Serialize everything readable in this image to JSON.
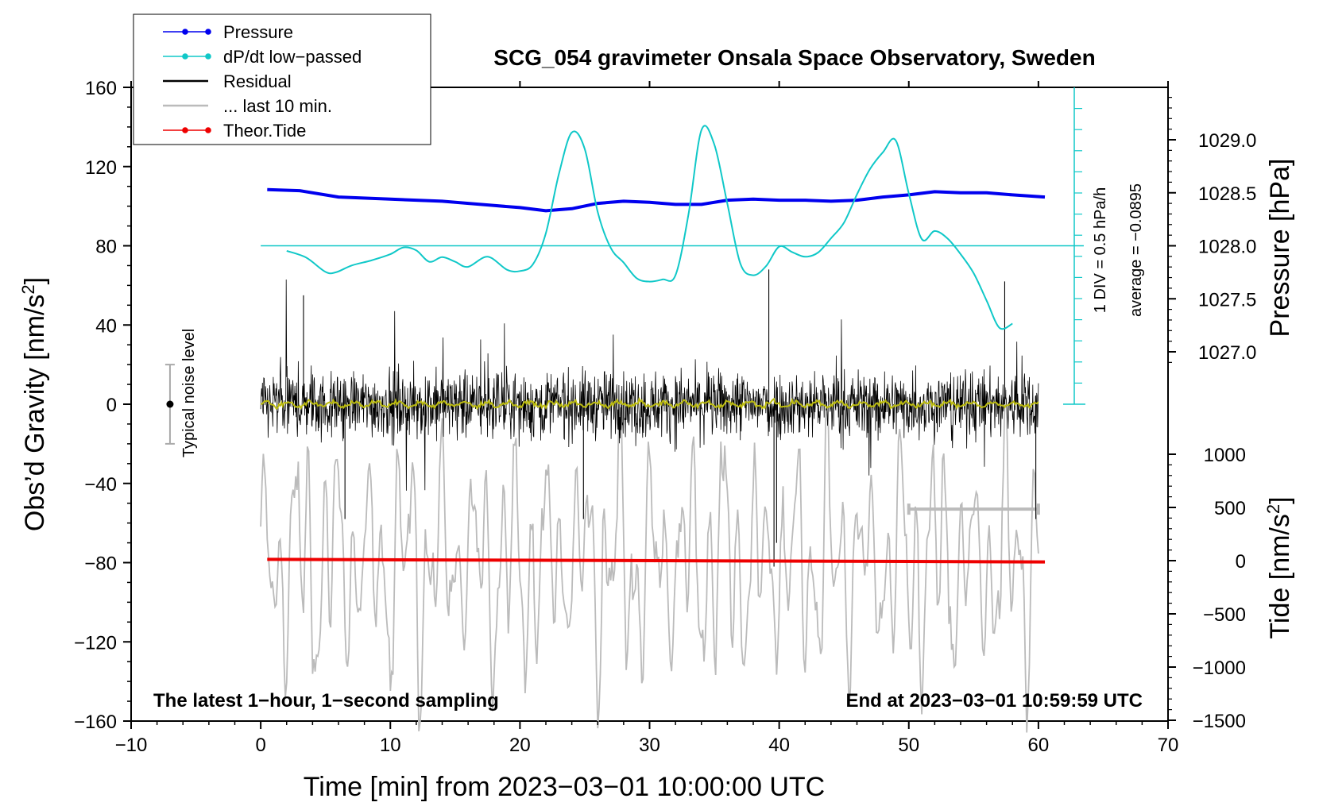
{
  "chart_data": {
    "type": "line",
    "title": "SCG_054 gravimeter Onsala Space Observatory, Sweden",
    "xlabel": "Time [min] from 2023−03−01 10:00:00 UTC",
    "ylabel_left": "Obs’d Gravity [nm/s",
    "ylabel_left_sup": "2",
    "ylabel_left_end": "]",
    "ylabel_right_top": "Pressure [hPa]",
    "ylabel_right_bottom": "Tide [nm/s",
    "ylabel_right_bottom_sup": "2",
    "ylabel_right_bottom_end": "]",
    "xlim": [
      -10,
      70
    ],
    "ylim": [
      -160,
      160
    ],
    "xticks": [
      -10,
      0,
      10,
      20,
      30,
      40,
      50,
      60,
      70
    ],
    "xtick_labels": [
      "−10",
      "0",
      "10",
      "20",
      "30",
      "40",
      "50",
      "60",
      "70"
    ],
    "yticks": [
      160,
      120,
      80,
      40,
      0,
      -40,
      -80,
      -120,
      -160
    ],
    "ytick_labels": [
      "160",
      "120",
      "80",
      "40",
      "0",
      "−40",
      "−80",
      "−120",
      "−160"
    ],
    "pressure_axis": {
      "ticks": [
        1029.0,
        1028.5,
        1028.0,
        1027.5,
        1027.0
      ],
      "labels": [
        "1029.0",
        "1028.5",
        "1028.0",
        "1027.5",
        "1027.0"
      ],
      "range_hpa": [
        1026.5,
        1029.5
      ]
    },
    "tide_axis": {
      "ticks": [
        1000,
        500,
        0,
        -500,
        -1000,
        -1500
      ],
      "labels": [
        "1000",
        "500",
        "0",
        "−500",
        "−1000",
        "−1500"
      ],
      "range": [
        -1500,
        1500
      ]
    },
    "series": [
      {
        "name": "Pressure",
        "unit": "hPa",
        "color": "#0000ee",
        "x": [
          0.5,
          3,
          6,
          10,
          14,
          18,
          20,
          22,
          24,
          26,
          28,
          30,
          32,
          34,
          36,
          38,
          40,
          42,
          44,
          46,
          48,
          50,
          52,
          54,
          56,
          58,
          60.5
        ],
        "values": [
          1028.53,
          1028.52,
          1028.46,
          1028.44,
          1028.42,
          1028.38,
          1028.36,
          1028.33,
          1028.35,
          1028.4,
          1028.42,
          1028.41,
          1028.39,
          1028.39,
          1028.43,
          1028.44,
          1028.43,
          1028.43,
          1028.42,
          1028.43,
          1028.46,
          1028.48,
          1028.51,
          1028.5,
          1028.5,
          1028.48,
          1028.46
        ]
      },
      {
        "name": "dP/dt low−passed",
        "unit": "hPa/h",
        "color": "#10c8c8",
        "x": [
          2,
          3.5,
          5,
          5.8,
          7,
          8.5,
          10,
          11,
          12,
          13,
          14,
          15,
          16,
          17.5,
          19,
          20,
          21,
          22,
          23,
          24,
          25,
          26,
          27,
          28,
          29,
          30,
          31,
          32,
          33,
          34,
          35,
          36,
          37,
          38,
          39,
          40,
          41,
          42,
          43,
          44,
          45,
          46,
          47,
          48,
          49,
          50,
          51,
          52,
          53,
          54,
          55,
          56,
          57,
          58
        ],
        "values": [
          -0.12,
          -0.28,
          -0.62,
          -0.63,
          -0.47,
          -0.35,
          -0.2,
          -0.04,
          -0.11,
          -0.38,
          -0.27,
          -0.38,
          -0.5,
          -0.26,
          -0.57,
          -0.6,
          -0.44,
          0.3,
          1.7,
          2.69,
          2.3,
          0.8,
          -0.05,
          -0.4,
          -0.77,
          -0.85,
          -0.8,
          -0.7,
          0.74,
          2.75,
          2.4,
          1.0,
          -0.42,
          -0.7,
          -0.48,
          -0.02,
          -0.15,
          -0.26,
          -0.16,
          0.18,
          0.55,
          1.22,
          1.82,
          2.22,
          2.5,
          1.24,
          0.16,
          0.35,
          0.17,
          -0.2,
          -0.65,
          -1.3,
          -1.95,
          -1.85
        ]
      },
      {
        "name": "Residual",
        "unit": "nm/s²",
        "color": "#000000",
        "samples": 3600,
        "x_range": [
          0,
          60
        ],
        "mean": 0,
        "typical_amplitude": 20,
        "peaks": [
          {
            "x": 3.3,
            "y": 55
          },
          {
            "x": 6.5,
            "y": -58
          },
          {
            "x": 24.9,
            "y": -58
          },
          {
            "x": 39.2,
            "y": 68
          },
          {
            "x": 39.6,
            "y": -82
          },
          {
            "x": 39.8,
            "y": -70
          },
          {
            "x": 57.4,
            "y": 62
          },
          {
            "x": 59.8,
            "y": -58
          }
        ]
      },
      {
        "name": "Residual smoothed",
        "unit": "nm/s²",
        "color": "#bcbc10",
        "x_range": [
          0,
          60
        ],
        "mean": 0,
        "typical_amplitude": 2
      },
      {
        "name": "... last 10 min.",
        "unit": "nm/s²",
        "color": "#bbbbbb",
        "x_range": [
          50,
          60
        ],
        "display_offset": -80,
        "typical_amplitude": 45
      },
      {
        "name": "Theor.Tide",
        "unit": "nm/s²",
        "color": "#ee0000",
        "x": [
          0.5,
          60.5
        ],
        "values": [
          12,
          -12
        ]
      }
    ],
    "noise_level": {
      "label": "Typical noise level",
      "x": -7,
      "y": 0,
      "range": [
        -20,
        20
      ]
    },
    "dpdt_scale": {
      "label": "1 DIV = 0.5 hPa/h",
      "zero_y": 80
    },
    "dpdt_average": "average = −0.0895",
    "last10_bracket": {
      "x": [
        50,
        60
      ],
      "y": -53
    },
    "legend": {
      "position": "top-left",
      "entries": [
        {
          "label": "Pressure",
          "color": "#0000ee",
          "marker": true
        },
        {
          "label": "dP/dt low−passed",
          "color": "#10c8c8",
          "marker": true
        },
        {
          "label": "Residual",
          "color": "#000000",
          "marker": false
        },
        {
          "label": "... last 10 min.",
          "color": "#bbbbbb",
          "marker": false
        },
        {
          "label": "Theor.Tide",
          "color": "#ee0000",
          "marker": true
        }
      ]
    },
    "footer_left": "The latest 1−hour, 1−second sampling",
    "footer_right": "End at 2023−03−01 10:59:59 UTC"
  }
}
